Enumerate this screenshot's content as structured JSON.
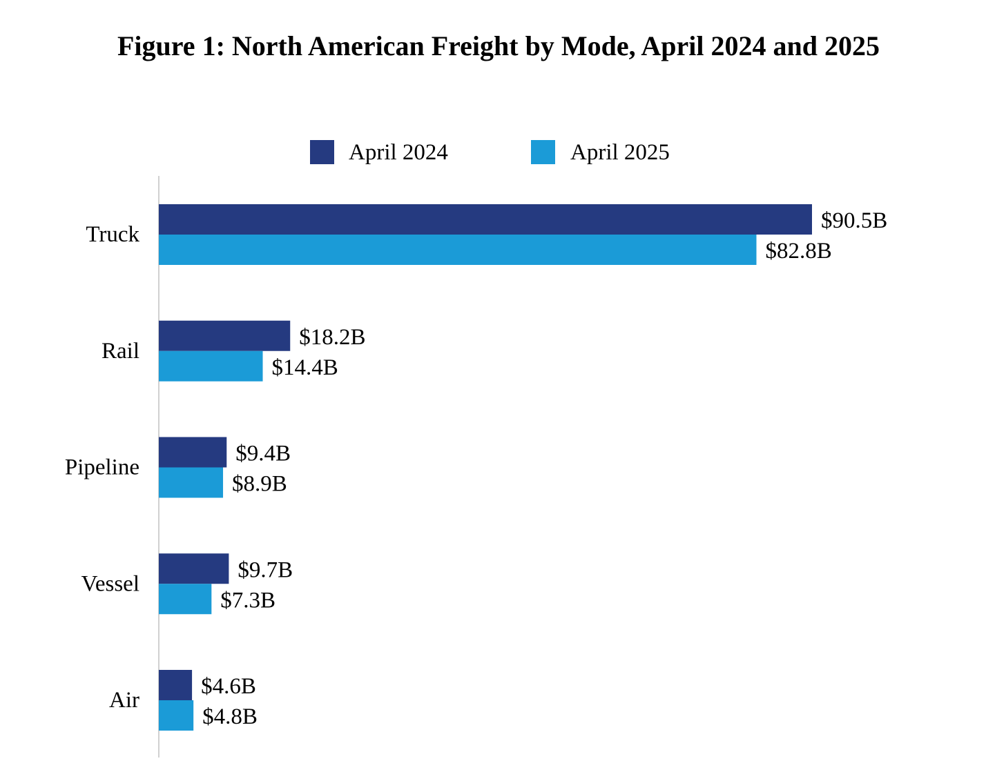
{
  "chart_data": {
    "type": "bar",
    "orientation": "horizontal",
    "title": "Figure 1: North American Freight by Mode, April 2024 and 2025",
    "categories": [
      "Truck",
      "Rail",
      "Pipeline",
      "Vessel",
      "Air"
    ],
    "series": [
      {
        "name": "April 2024",
        "color": "#253a80",
        "values": [
          90.5,
          18.2,
          9.4,
          9.7,
          4.6
        ],
        "labels": [
          "$90.5B",
          "$18.2B",
          "$9.4B",
          "$9.7B",
          "$4.6B"
        ]
      },
      {
        "name": "April 2025",
        "color": "#1b9bd7",
        "values": [
          82.8,
          14.4,
          8.9,
          7.3,
          4.8
        ],
        "labels": [
          "$82.8B",
          "$14.4B",
          "$8.9B",
          "$7.3B",
          "$4.8B"
        ]
      }
    ],
    "xlim": [
      0,
      90.5
    ],
    "grid": false,
    "legend_position": "top"
  },
  "axis_color": "#d0d0d0"
}
